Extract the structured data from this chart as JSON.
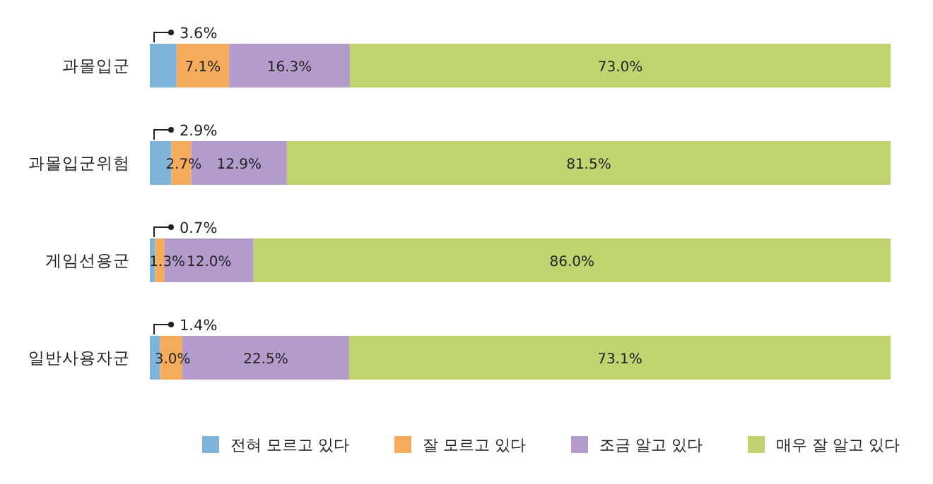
{
  "chart_data": {
    "type": "bar",
    "orientation": "horizontal",
    "stacked": true,
    "legend": "bottom",
    "categories": [
      "과몰입군",
      "과몰입군위험",
      "게임선용군",
      "일반사용자군"
    ],
    "series": [
      {
        "name": "전혀 모르고 있다",
        "color": "#7fb3d8",
        "values": [
          3.6,
          2.9,
          0.7,
          1.4
        ],
        "value_labels": [
          "3.6%",
          "2.9%",
          "0.7%",
          "1.4%"
        ]
      },
      {
        "name": "잘 모르고 있다",
        "color": "#f4ac5c",
        "values": [
          7.1,
          2.7,
          1.3,
          3.0
        ],
        "value_labels": [
          "7.1%",
          "2.7%",
          "1.3%",
          "3.0%"
        ]
      },
      {
        "name": "조금 알고 있다",
        "color": "#b39ccc",
        "values": [
          16.3,
          12.9,
          12.0,
          22.5
        ],
        "value_labels": [
          "16.3%",
          "12.9%",
          "12.0%",
          "22.5%"
        ]
      },
      {
        "name": "매우 잘 알고 있다",
        "color": "#bfd46e",
        "values": [
          73.0,
          81.5,
          86.0,
          73.1
        ],
        "value_labels": [
          "73.0%",
          "81.5%",
          "86.0%",
          "73.1%"
        ]
      }
    ]
  }
}
